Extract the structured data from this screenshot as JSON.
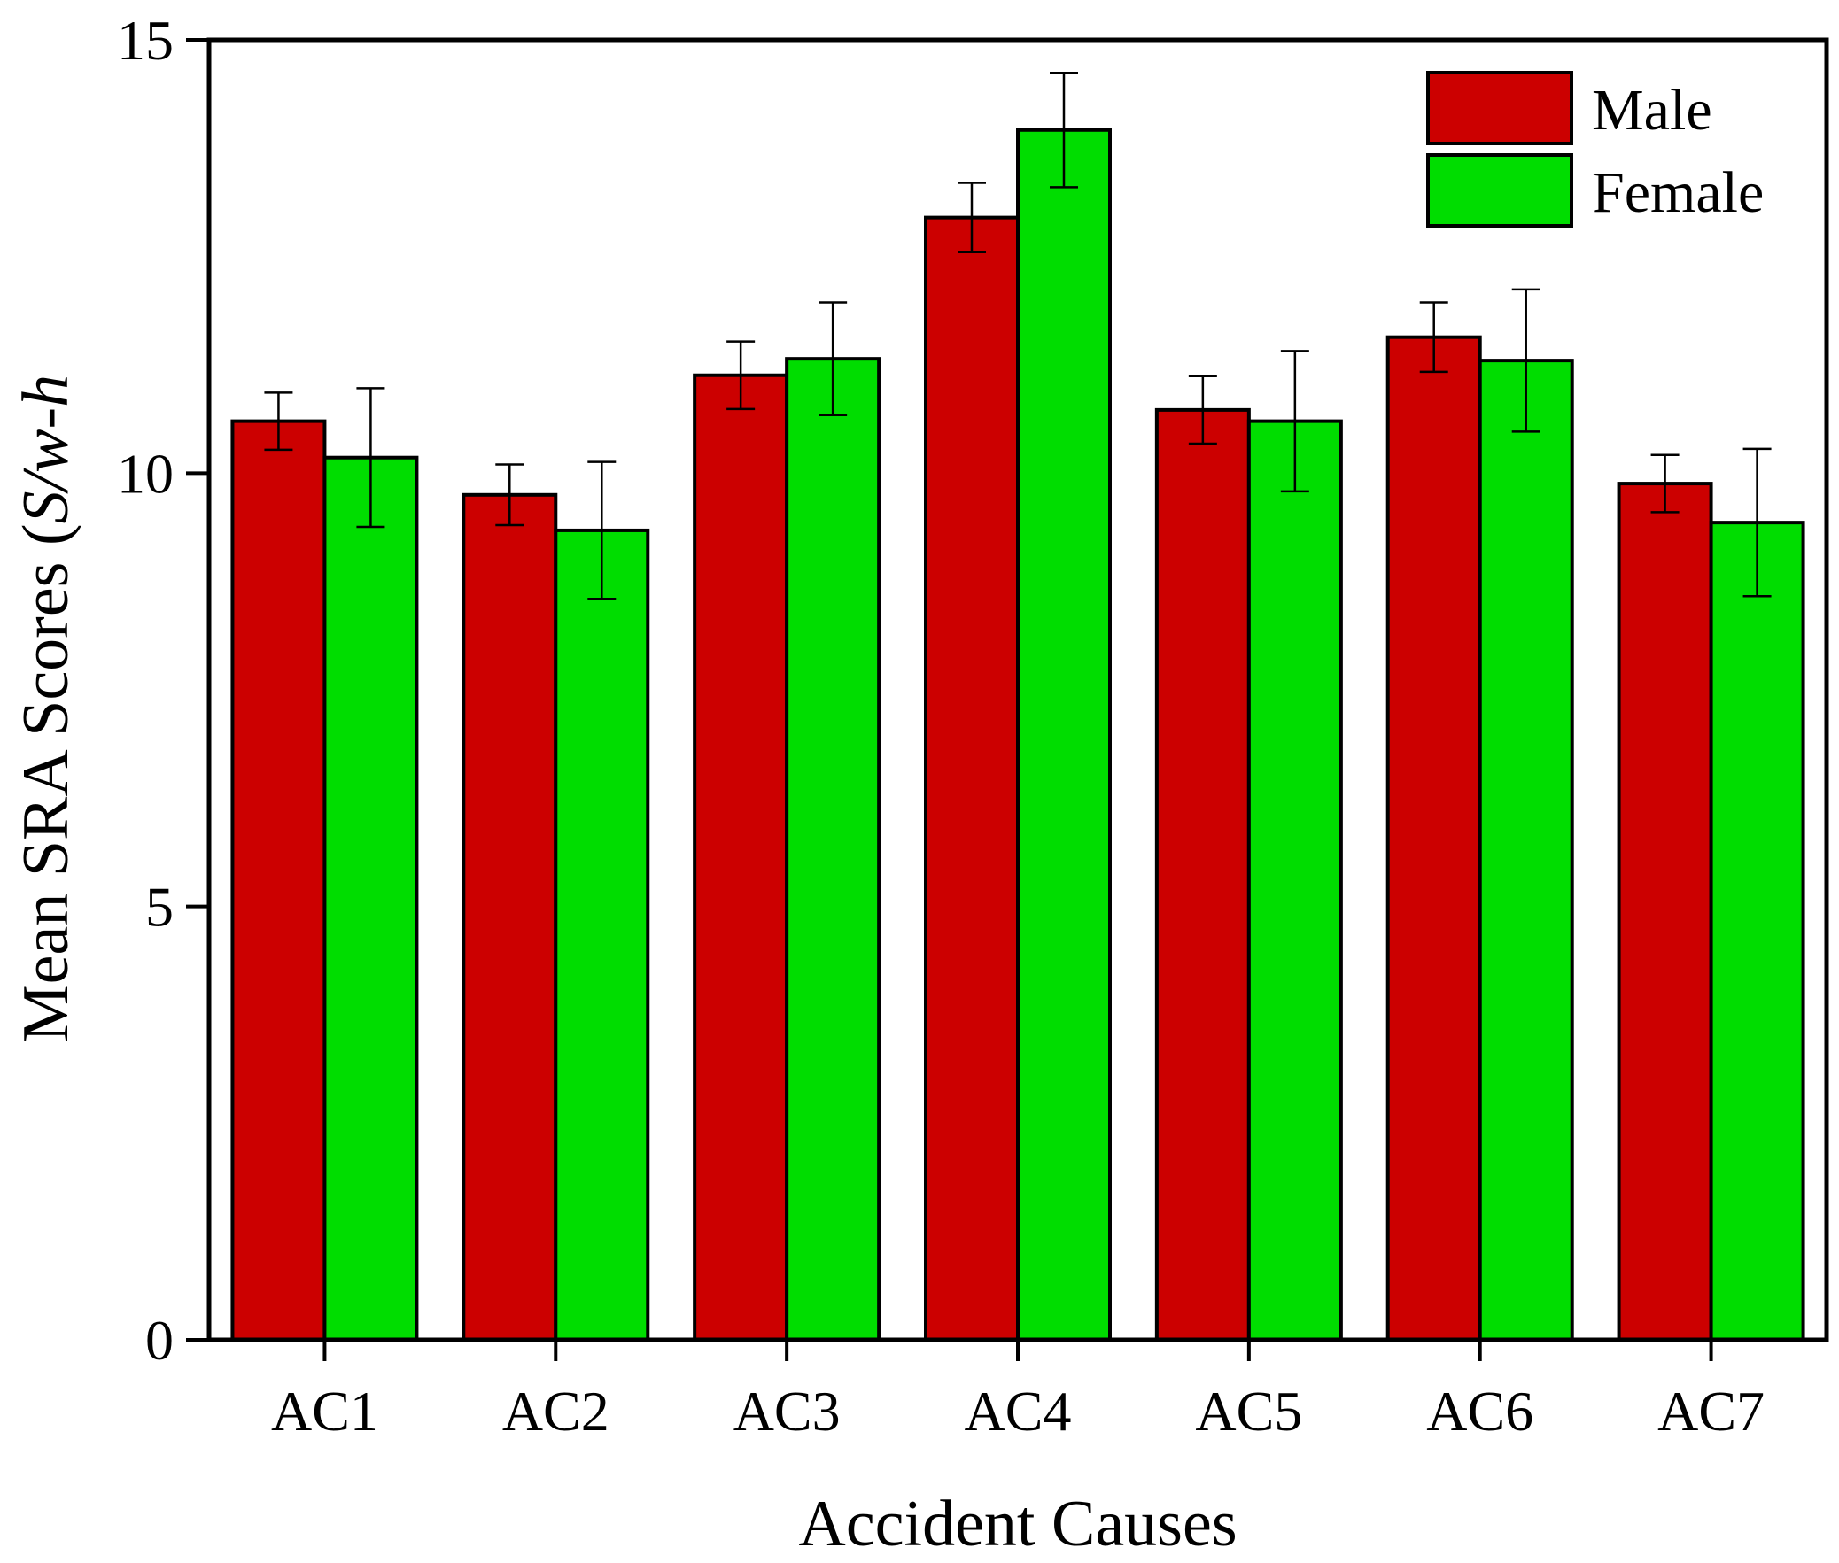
{
  "chart_data": {
    "type": "bar",
    "title": "",
    "xlabel": "Accident Causes",
    "ylabel": {
      "prefix": "Mean SRA Scores (",
      "italic": "S/w-h",
      "suffix": ""
    },
    "ylim": [
      0,
      15
    ],
    "yticks": [
      0,
      5,
      10,
      15
    ],
    "ytick_labels": [
      "0",
      "5",
      "10",
      "15"
    ],
    "categories": [
      "AC1",
      "AC2",
      "AC3",
      "AC4",
      "AC5",
      "AC6",
      "AC7"
    ],
    "series": [
      {
        "name": "Male",
        "color": "#cc0000",
        "values": [
          10.6,
          9.75,
          11.13,
          12.95,
          10.73,
          11.57,
          9.88
        ],
        "errors": [
          0.33,
          0.35,
          0.39,
          0.4,
          0.39,
          0.4,
          0.33
        ]
      },
      {
        "name": "Female",
        "color": "#00dd00",
        "values": [
          10.18,
          9.34,
          11.32,
          13.96,
          10.6,
          11.3,
          9.43
        ],
        "errors": [
          0.8,
          0.79,
          0.65,
          0.66,
          0.81,
          0.82,
          0.85
        ]
      }
    ],
    "grid": false,
    "legend": {
      "position": "top-right",
      "entries": [
        "Male",
        "Female"
      ]
    }
  }
}
